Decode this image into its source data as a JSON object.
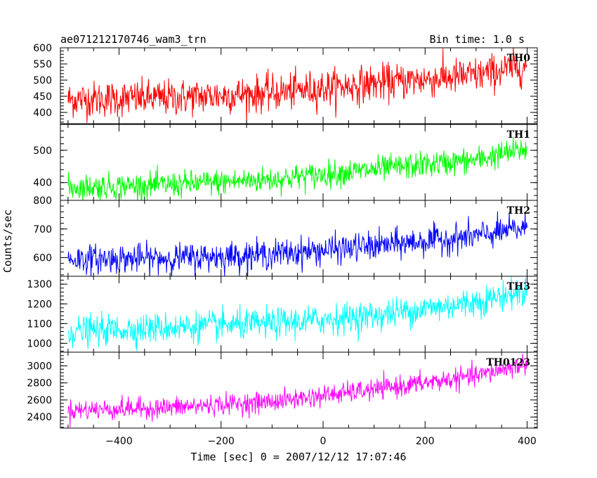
{
  "header": {
    "title": "ae071212170746_wam3_trn",
    "bin_time": "Bin time: 1.0 s"
  },
  "chart_data": {
    "type": "line",
    "title": "ae071212170746_wam3_trn",
    "xlabel": "Time [sec] 0 = 2007/12/12 17:07:46",
    "ylabel": "Counts/sec",
    "xlim": [
      -515,
      420
    ],
    "x_ticks": [
      -400,
      -200,
      0,
      200,
      400
    ],
    "x_tick_labels": [
      "−400",
      "−200",
      "0",
      "200",
      "400"
    ],
    "x_range": [
      -500,
      400
    ],
    "panels": [
      {
        "name": "TH0",
        "color": "#ff0000",
        "ylim": [
          365,
          600
        ],
        "yticks": [
          400,
          450,
          500,
          550,
          600
        ],
        "trend": [
          [
            -500,
            440
          ],
          [
            -300,
            445
          ],
          [
            -100,
            460
          ],
          [
            100,
            490
          ],
          [
            300,
            515
          ],
          [
            400,
            545
          ]
        ],
        "noise_sd": 28
      },
      {
        "name": "TH1",
        "color": "#00ff00",
        "ylim": [
          345,
          580
        ],
        "yticks": [
          400,
          500
        ],
        "trend": [
          [
            -500,
            385
          ],
          [
            -300,
            393
          ],
          [
            -100,
            410
          ],
          [
            100,
            440
          ],
          [
            300,
            470
          ],
          [
            400,
            505
          ]
        ],
        "noise_sd": 20
      },
      {
        "name": "TH2",
        "color": "#0000ff",
        "ylim": [
          535,
          800
        ],
        "yticks": [
          600,
          700,
          800
        ],
        "trend": [
          [
            -500,
            595
          ],
          [
            -300,
            598
          ],
          [
            -100,
            612
          ],
          [
            100,
            640
          ],
          [
            300,
            675
          ],
          [
            400,
            705
          ]
        ],
        "noise_sd": 25
      },
      {
        "name": "TH3",
        "color": "#00ffff",
        "ylim": [
          955,
          1340
        ],
        "yticks": [
          1000,
          1100,
          1200,
          1300
        ],
        "trend": [
          [
            -500,
            1060
          ],
          [
            -300,
            1080
          ],
          [
            -100,
            1100
          ],
          [
            100,
            1140
          ],
          [
            300,
            1210
          ],
          [
            400,
            1265
          ]
        ],
        "noise_sd": 38
      },
      {
        "name": "TH0123",
        "color": "#ff00ff",
        "ylim": [
          2270,
          3160
        ],
        "yticks": [
          2400,
          2600,
          2800,
          3000
        ],
        "trend": [
          [
            -500,
            2480
          ],
          [
            -300,
            2510
          ],
          [
            -100,
            2580
          ],
          [
            100,
            2720
          ],
          [
            300,
            2880
          ],
          [
            400,
            3030
          ]
        ],
        "noise_sd": 60
      }
    ]
  }
}
